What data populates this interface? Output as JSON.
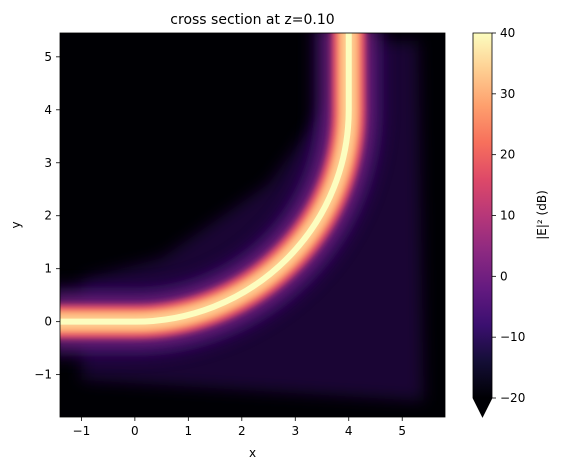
{
  "chart_data": {
    "type": "heatmap",
    "title": "cross section at z=0.10",
    "xlabel": "x",
    "ylabel": "y",
    "xlim": [
      -1.4,
      5.8
    ],
    "ylim": [
      -1.8,
      5.45
    ],
    "x_ticks": [
      -1,
      0,
      1,
      2,
      3,
      4,
      5
    ],
    "y_ticks": [
      -1,
      0,
      1,
      2,
      3,
      4,
      5
    ],
    "colorbar": {
      "label": "|E|² (dB)",
      "range": [
        -20,
        40
      ],
      "ticks": [
        -20,
        -10,
        0,
        10,
        20,
        30,
        40
      ],
      "colormap": "magma",
      "extend": "min"
    },
    "field_structure": {
      "description_features": [
        {
          "name": "straight waveguide",
          "y": 0,
          "x_range": [
            -1.4,
            0
          ],
          "peak_db": 40
        },
        {
          "name": "bend",
          "center": [
            0,
            4
          ],
          "radius": 4,
          "from_angle_deg": 270,
          "to_angle_deg": 360,
          "peak_db": 40
        },
        {
          "name": "vertical output",
          "x": 4,
          "y_range": [
            4,
            5.4
          ],
          "peak_db": 40
        }
      ],
      "background_db": -20
    }
  }
}
